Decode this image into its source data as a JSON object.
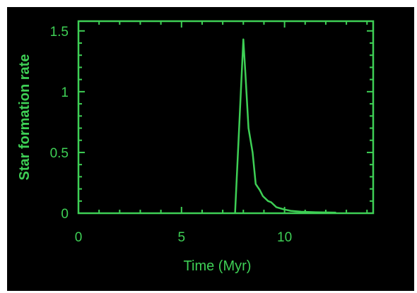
{
  "colors": {
    "background": "#000000",
    "frame": "#3ecf55",
    "accent": "#3ecf55"
  },
  "chart_data": {
    "type": "line",
    "title": "",
    "xlabel": "Time (Myr)",
    "ylabel": "Star formation rate",
    "xlim": [
      0,
      14.3
    ],
    "ylim": [
      0,
      1.58
    ],
    "x_ticks": [
      {
        "value": 0,
        "label": "0"
      },
      {
        "value": 5,
        "label": "5"
      },
      {
        "value": 10,
        "label": "10"
      }
    ],
    "y_ticks": [
      {
        "value": 0,
        "label": "0"
      },
      {
        "value": 0.5,
        "label": "0.5"
      },
      {
        "value": 1,
        "label": "1"
      },
      {
        "value": 1.5,
        "label": "1.5"
      }
    ],
    "grid": false,
    "legend": "none",
    "series": [
      {
        "x": [
          7.6,
          8.0,
          8.1,
          8.25,
          8.45,
          8.6,
          8.8,
          8.95,
          9.2,
          9.35,
          9.6,
          10.0,
          10.3,
          10.8,
          11.5,
          12.5
        ],
        "y": [
          0,
          1.43,
          1.15,
          0.7,
          0.5,
          0.24,
          0.19,
          0.14,
          0.1,
          0.09,
          0.05,
          0.03,
          0.02,
          0.012,
          0.008,
          0.005
        ]
      }
    ]
  }
}
